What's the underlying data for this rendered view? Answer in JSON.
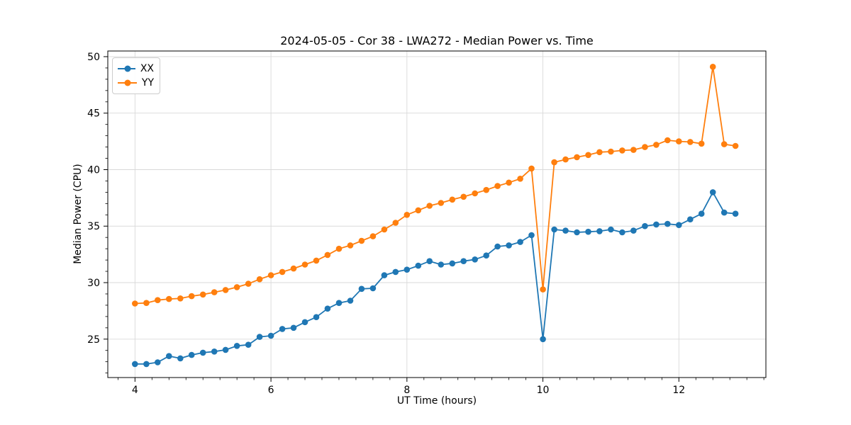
{
  "title": "2024-05-05 - Cor 38 - LWA272 - Median Power vs. Time",
  "chart_data": {
    "type": "line",
    "title": "2024-05-05 - Cor 38 - LWA272 - Median Power vs. Time",
    "xlabel": "UT Time (hours)",
    "ylabel": "Median Power (CPU)",
    "xlim": [
      3.6,
      13.28
    ],
    "ylim": [
      21.6,
      50.5
    ],
    "x_ticks": [
      4,
      6,
      8,
      10,
      12
    ],
    "y_ticks": [
      25,
      30,
      35,
      40,
      45,
      50
    ],
    "x_minor_step": 0.25,
    "y_minor_step": 1,
    "grid": true,
    "legend_position": "upper left",
    "x": [
      4.0,
      4.167,
      4.333,
      4.5,
      4.667,
      4.833,
      5.0,
      5.167,
      5.333,
      5.5,
      5.667,
      5.833,
      6.0,
      6.167,
      6.333,
      6.5,
      6.667,
      6.833,
      7.0,
      7.167,
      7.333,
      7.5,
      7.667,
      7.833,
      8.0,
      8.167,
      8.333,
      8.5,
      8.667,
      8.833,
      9.0,
      9.167,
      9.333,
      9.5,
      9.667,
      9.833,
      10.0,
      10.167,
      10.333,
      10.5,
      10.667,
      10.833,
      11.0,
      11.167,
      11.333,
      11.5,
      11.667,
      11.833,
      12.0,
      12.167,
      12.333,
      12.5,
      12.667,
      12.833
    ],
    "series": [
      {
        "name": "XX",
        "color": "#1f77b4",
        "values": [
          22.8,
          22.8,
          22.95,
          23.5,
          23.3,
          23.6,
          23.8,
          23.9,
          24.05,
          24.4,
          24.5,
          25.2,
          25.3,
          25.9,
          26.0,
          26.5,
          26.95,
          27.7,
          28.2,
          28.4,
          29.45,
          29.5,
          30.65,
          30.95,
          31.15,
          31.5,
          31.9,
          31.6,
          31.7,
          31.9,
          32.05,
          32.4,
          33.2,
          33.3,
          33.6,
          34.2,
          25.0,
          34.7,
          34.6,
          34.45,
          34.5,
          34.55,
          34.7,
          34.45,
          34.6,
          35.0,
          35.15,
          35.2,
          35.1,
          35.6,
          36.1,
          38.0,
          36.2,
          36.1
        ]
      },
      {
        "name": "YY",
        "color": "#ff7f0e",
        "values": [
          28.15,
          28.2,
          28.45,
          28.55,
          28.6,
          28.8,
          28.95,
          29.15,
          29.35,
          29.6,
          29.9,
          30.3,
          30.65,
          30.95,
          31.25,
          31.6,
          31.95,
          32.45,
          33.0,
          33.3,
          33.7,
          34.1,
          34.7,
          35.3,
          36.0,
          36.4,
          36.8,
          37.05,
          37.35,
          37.6,
          37.9,
          38.2,
          38.55,
          38.85,
          39.2,
          40.1,
          29.4,
          40.65,
          40.9,
          41.1,
          41.3,
          41.55,
          41.6,
          41.7,
          41.75,
          42.0,
          42.2,
          42.6,
          42.5,
          42.45,
          42.3,
          49.1,
          42.25,
          42.1
        ]
      }
    ]
  }
}
